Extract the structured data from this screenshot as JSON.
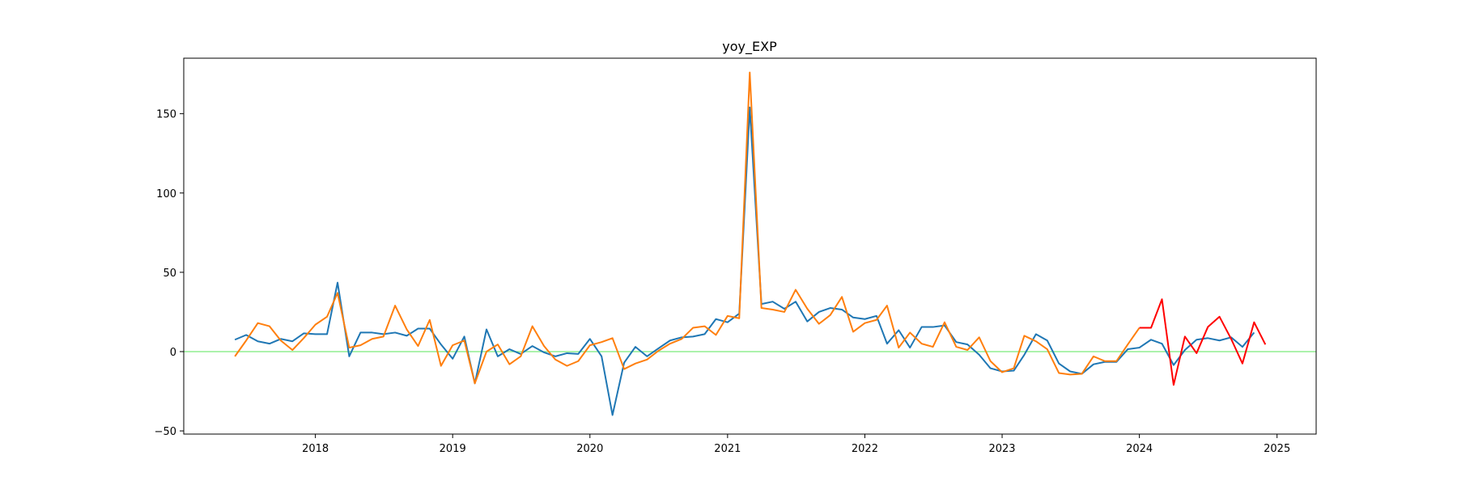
{
  "chart_data": {
    "type": "line",
    "title": "yoy_EXP",
    "xlabel": "",
    "ylabel": "",
    "xlim": [
      "2017-01-16",
      "2025-04-15"
    ],
    "ylim": [
      -52,
      185
    ],
    "x_ticks": [
      "2018",
      "2019",
      "2020",
      "2021",
      "2022",
      "2023",
      "2024",
      "2025"
    ],
    "y_ticks": [
      -50,
      0,
      50,
      100,
      150
    ],
    "grid": false,
    "legend": "none",
    "reference_line": {
      "y": 0,
      "color": "#90ee90"
    },
    "series": [
      {
        "color": "#1f77b4",
        "points": [
          [
            "2017-06-01",
            7.5
          ],
          [
            "2017-07-01",
            10.5
          ],
          [
            "2017-08-01",
            6.5
          ],
          [
            "2017-09-01",
            5
          ],
          [
            "2017-10-01",
            8
          ],
          [
            "2017-11-01",
            6.5
          ],
          [
            "2017-12-01",
            11.5
          ],
          [
            "2018-01-01",
            11
          ],
          [
            "2018-02-01",
            11
          ],
          [
            "2018-03-01",
            43.5
          ],
          [
            "2018-04-01",
            -3
          ],
          [
            "2018-05-01",
            12
          ],
          [
            "2018-06-01",
            12
          ],
          [
            "2018-07-01",
            11
          ],
          [
            "2018-08-01",
            12
          ],
          [
            "2018-09-01",
            10
          ],
          [
            "2018-10-01",
            14.5
          ],
          [
            "2018-11-01",
            14.5
          ],
          [
            "2018-12-01",
            4.5
          ],
          [
            "2019-01-01",
            -4.5
          ],
          [
            "2019-02-01",
            9.5
          ],
          [
            "2019-03-01",
            -20
          ],
          [
            "2019-04-01",
            14
          ],
          [
            "2019-05-01",
            -3
          ],
          [
            "2019-06-01",
            1.5
          ],
          [
            "2019-07-01",
            -1.5
          ],
          [
            "2019-08-01",
            3.5
          ],
          [
            "2019-09-01",
            -0.5
          ],
          [
            "2019-10-01",
            -3
          ],
          [
            "2019-11-01",
            -1
          ],
          [
            "2019-12-01",
            -1.5
          ],
          [
            "2020-01-01",
            8
          ],
          [
            "2020-02-01",
            -3
          ],
          [
            "2020-03-01",
            -40
          ],
          [
            "2020-04-01",
            -7
          ],
          [
            "2020-05-01",
            3
          ],
          [
            "2020-06-01",
            -3
          ],
          [
            "2020-07-01",
            2
          ],
          [
            "2020-08-01",
            7
          ],
          [
            "2020-09-01",
            9
          ],
          [
            "2020-10-01",
            9.5
          ],
          [
            "2020-11-01",
            11
          ],
          [
            "2020-12-01",
            20.5
          ],
          [
            "2021-01-01",
            18.5
          ],
          [
            "2021-02-01",
            24
          ],
          [
            "2021-03-01",
            154
          ],
          [
            "2021-04-01",
            30
          ],
          [
            "2021-05-01",
            31.5
          ],
          [
            "2021-06-01",
            27
          ],
          [
            "2021-07-01",
            31.5
          ],
          [
            "2021-08-01",
            19
          ],
          [
            "2021-09-01",
            25
          ],
          [
            "2021-10-01",
            27.5
          ],
          [
            "2021-11-01",
            26.5
          ],
          [
            "2021-12-01",
            21.5
          ],
          [
            "2022-01-01",
            20.5
          ],
          [
            "2022-02-01",
            22.5
          ],
          [
            "2022-03-01",
            5
          ],
          [
            "2022-04-01",
            13.5
          ],
          [
            "2022-05-01",
            2.5
          ],
          [
            "2022-06-01",
            15.5
          ],
          [
            "2022-07-01",
            15.5
          ],
          [
            "2022-08-01",
            16.5
          ],
          [
            "2022-09-01",
            6
          ],
          [
            "2022-10-01",
            4.5
          ],
          [
            "2022-11-01",
            -2
          ],
          [
            "2022-12-01",
            -10.5
          ],
          [
            "2023-01-01",
            -12.5
          ],
          [
            "2023-02-01",
            -12
          ],
          [
            "2023-03-01",
            -2
          ],
          [
            "2023-04-01",
            11
          ],
          [
            "2023-05-01",
            7
          ],
          [
            "2023-06-01",
            -7.5
          ],
          [
            "2023-07-01",
            -12.5
          ],
          [
            "2023-08-01",
            -14
          ],
          [
            "2023-09-01",
            -8
          ],
          [
            "2023-10-01",
            -6.5
          ],
          [
            "2023-11-01",
            -6.5
          ],
          [
            "2023-12-01",
            1.5
          ],
          [
            "2024-01-01",
            2.5
          ],
          [
            "2024-02-01",
            7.5
          ],
          [
            "2024-03-01",
            5
          ],
          [
            "2024-04-01",
            -8.5
          ],
          [
            "2024-05-01",
            1
          ],
          [
            "2024-06-01",
            7.5
          ],
          [
            "2024-07-01",
            8.5
          ],
          [
            "2024-08-01",
            7
          ],
          [
            "2024-09-01",
            9
          ],
          [
            "2024-10-01",
            3
          ],
          [
            "2024-11-01",
            12
          ]
        ]
      },
      {
        "color": "#ff7f0e",
        "points": [
          [
            "2017-06-01",
            -3
          ],
          [
            "2017-07-01",
            7
          ],
          [
            "2017-08-01",
            18
          ],
          [
            "2017-09-01",
            16
          ],
          [
            "2017-10-01",
            7
          ],
          [
            "2017-11-01",
            1
          ],
          [
            "2017-12-01",
            8.5
          ],
          [
            "2018-01-01",
            17
          ],
          [
            "2018-02-01",
            22
          ],
          [
            "2018-03-01",
            37
          ],
          [
            "2018-04-01",
            2.5
          ],
          [
            "2018-05-01",
            4
          ],
          [
            "2018-06-01",
            8
          ],
          [
            "2018-07-01",
            9.5
          ],
          [
            "2018-08-01",
            29
          ],
          [
            "2018-09-01",
            14
          ],
          [
            "2018-10-01",
            3.5
          ],
          [
            "2018-11-01",
            20
          ],
          [
            "2018-12-01",
            -9
          ],
          [
            "2019-01-01",
            4
          ],
          [
            "2019-02-01",
            7
          ],
          [
            "2019-03-01",
            -20
          ],
          [
            "2019-04-01",
            0
          ],
          [
            "2019-05-01",
            4.5
          ],
          [
            "2019-06-01",
            -8
          ],
          [
            "2019-07-01",
            -3
          ],
          [
            "2019-08-01",
            16
          ],
          [
            "2019-09-01",
            3.5
          ],
          [
            "2019-10-01",
            -5
          ],
          [
            "2019-11-01",
            -9
          ],
          [
            "2019-12-01",
            -6
          ],
          [
            "2020-01-01",
            4
          ],
          [
            "2020-02-01",
            6
          ],
          [
            "2020-03-01",
            8.5
          ],
          [
            "2020-04-01",
            -11
          ],
          [
            "2020-05-01",
            -7.5
          ],
          [
            "2020-06-01",
            -5
          ],
          [
            "2020-07-01",
            0.5
          ],
          [
            "2020-08-01",
            5
          ],
          [
            "2020-09-01",
            8
          ],
          [
            "2020-10-01",
            15
          ],
          [
            "2020-11-01",
            16
          ],
          [
            "2020-12-01",
            10.5
          ],
          [
            "2021-01-01",
            22.5
          ],
          [
            "2021-02-01",
            21
          ],
          [
            "2021-03-01",
            176
          ],
          [
            "2021-04-01",
            27.5
          ],
          [
            "2021-05-01",
            26.5
          ],
          [
            "2021-06-01",
            25
          ],
          [
            "2021-07-01",
            39
          ],
          [
            "2021-08-01",
            27
          ],
          [
            "2021-09-01",
            17.5
          ],
          [
            "2021-10-01",
            23
          ],
          [
            "2021-11-01",
            34.5
          ],
          [
            "2021-12-01",
            12.5
          ],
          [
            "2022-01-01",
            18
          ],
          [
            "2022-02-01",
            20
          ],
          [
            "2022-03-01",
            29
          ],
          [
            "2022-04-01",
            2.5
          ],
          [
            "2022-05-01",
            12
          ],
          [
            "2022-06-01",
            5
          ],
          [
            "2022-07-01",
            3
          ],
          [
            "2022-08-01",
            18.5
          ],
          [
            "2022-09-01",
            3
          ],
          [
            "2022-10-01",
            1
          ],
          [
            "2022-11-01",
            9
          ],
          [
            "2022-12-01",
            -6
          ],
          [
            "2023-01-01",
            -13
          ],
          [
            "2023-02-01",
            -10.5
          ],
          [
            "2023-03-01",
            10
          ],
          [
            "2023-04-01",
            6.5
          ],
          [
            "2023-05-01",
            1.5
          ],
          [
            "2023-06-01",
            -13.5
          ],
          [
            "2023-07-01",
            -14.5
          ],
          [
            "2023-08-01",
            -14
          ],
          [
            "2023-09-01",
            -3
          ],
          [
            "2023-10-01",
            -6
          ],
          [
            "2023-11-01",
            -6
          ],
          [
            "2023-12-01",
            4.5
          ],
          [
            "2024-01-01",
            15
          ]
        ]
      },
      {
        "color": "#ff0000",
        "points": [
          [
            "2024-01-01",
            15
          ],
          [
            "2024-02-01",
            15
          ],
          [
            "2024-03-01",
            33
          ],
          [
            "2024-04-01",
            -21
          ],
          [
            "2024-05-01",
            9.5
          ],
          [
            "2024-06-01",
            -1
          ],
          [
            "2024-07-01",
            15.5
          ],
          [
            "2024-08-01",
            22
          ],
          [
            "2024-09-01",
            8
          ],
          [
            "2024-10-01",
            -7.5
          ],
          [
            "2024-11-01",
            18.5
          ],
          [
            "2024-12-01",
            4.5
          ]
        ]
      }
    ]
  }
}
